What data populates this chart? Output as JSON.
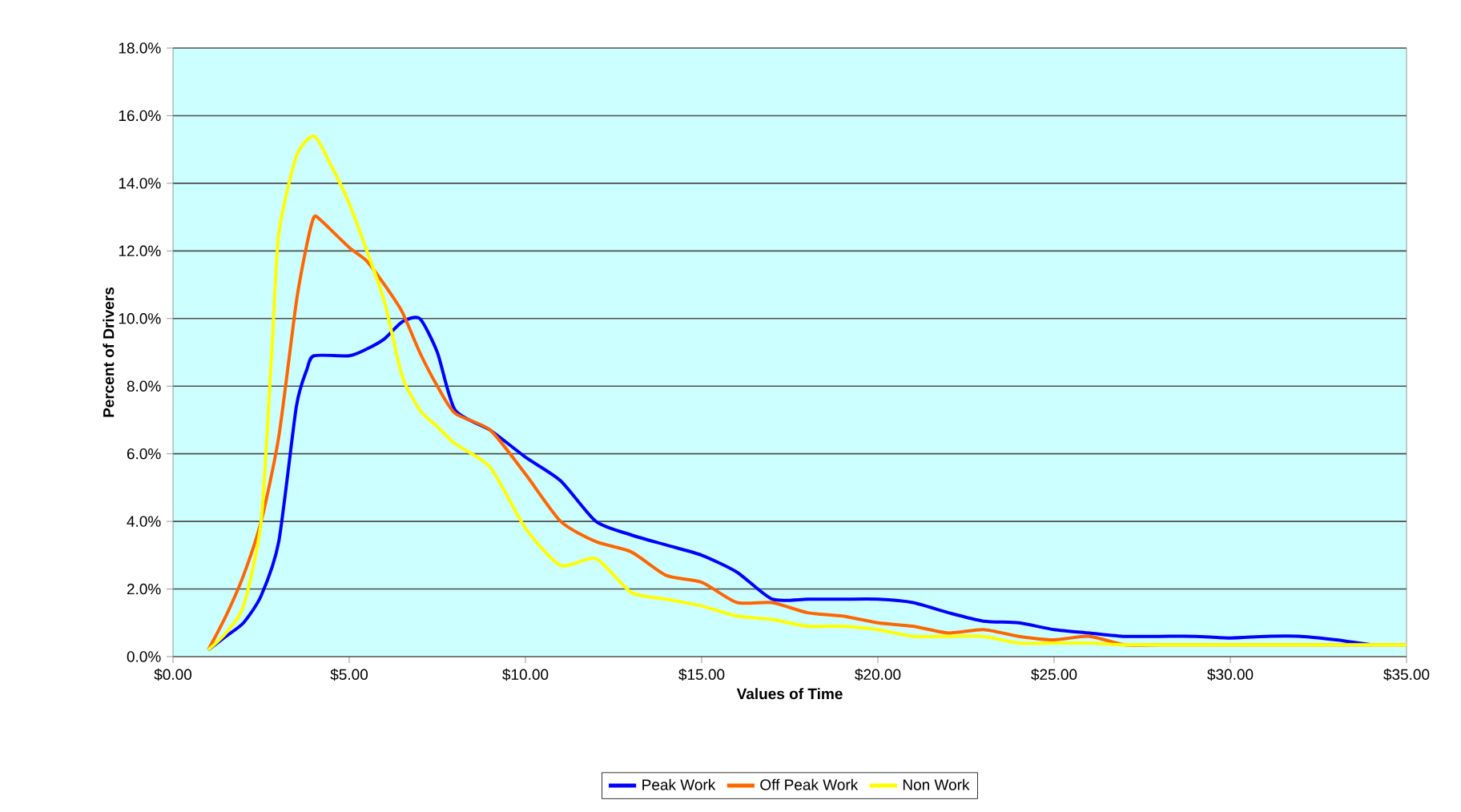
{
  "chart_data": {
    "type": "line",
    "xlabel": "Values of Time",
    "ylabel": "Percent of Drivers",
    "xlim": [
      0,
      35
    ],
    "ylim": [
      0,
      18
    ],
    "xticks": [
      {
        "value": 0,
        "label": "$0.00"
      },
      {
        "value": 5,
        "label": "$5.00"
      },
      {
        "value": 10,
        "label": "$10.00"
      },
      {
        "value": 15,
        "label": "$15.00"
      },
      {
        "value": 20,
        "label": "$20.00"
      },
      {
        "value": 25,
        "label": "$25.00"
      },
      {
        "value": 30,
        "label": "$30.00"
      },
      {
        "value": 35,
        "label": "$35.00"
      }
    ],
    "yticks": [
      {
        "value": 0,
        "label": "0.0%"
      },
      {
        "value": 2,
        "label": "2.0%"
      },
      {
        "value": 4,
        "label": "4.0%"
      },
      {
        "value": 6,
        "label": "6.0%"
      },
      {
        "value": 8,
        "label": "8.0%"
      },
      {
        "value": 10,
        "label": "10.0%"
      },
      {
        "value": 12,
        "label": "12.0%"
      },
      {
        "value": 14,
        "label": "14.0%"
      },
      {
        "value": 16,
        "label": "16.0%"
      },
      {
        "value": 18,
        "label": "18.0%"
      }
    ],
    "grid": "y",
    "legend": "bottom",
    "marker": "none",
    "line_style": "solid",
    "series": [
      {
        "name": "Peak Work",
        "color": "#0000ff",
        "x": [
          1,
          1.5,
          2,
          2.5,
          3,
          3.5,
          3.8,
          4,
          5,
          5.5,
          6,
          6.5,
          7,
          7.5,
          8,
          9,
          10,
          11,
          12,
          13,
          14,
          15,
          16,
          17,
          18,
          19,
          20,
          21,
          22,
          23,
          24,
          25,
          26,
          27,
          28,
          29,
          30,
          31,
          32,
          33,
          34
        ],
        "values": [
          0.2,
          0.6,
          1.0,
          1.8,
          3.4,
          7.4,
          8.5,
          8.9,
          8.9,
          9.1,
          9.4,
          9.9,
          10.0,
          9.0,
          7.3,
          6.7,
          5.9,
          5.2,
          4.0,
          3.6,
          3.3,
          3.0,
          2.5,
          1.7,
          1.7,
          1.7,
          1.7,
          1.6,
          1.3,
          1.05,
          1.0,
          0.8,
          0.7,
          0.6,
          0.6,
          0.6,
          0.55,
          0.6,
          0.6,
          0.5,
          0.35
        ]
      },
      {
        "name": "Off Peak Work",
        "color": "#ff6600",
        "x": [
          1,
          1.5,
          2,
          2.5,
          3,
          3.5,
          3.8,
          4,
          4.2,
          5,
          5.5,
          6,
          6.5,
          7,
          7.5,
          8,
          9,
          10,
          11,
          12,
          13,
          14,
          15,
          16,
          17,
          18,
          19,
          20,
          21,
          22,
          23,
          24,
          25,
          26,
          27,
          28,
          29,
          30,
          31,
          32,
          33,
          34,
          35
        ],
        "values": [
          0.2,
          1.2,
          2.4,
          4.0,
          6.5,
          10.5,
          12.2,
          13.0,
          12.9,
          12.1,
          11.7,
          11.0,
          10.2,
          9.0,
          8.0,
          7.2,
          6.7,
          5.4,
          4.0,
          3.4,
          3.1,
          2.4,
          2.2,
          1.6,
          1.6,
          1.3,
          1.2,
          1.0,
          0.9,
          0.7,
          0.8,
          0.6,
          0.5,
          0.6,
          0.35,
          0.35,
          0.35,
          0.35,
          0.35,
          0.35,
          0.35,
          0.35,
          0.35
        ]
      },
      {
        "name": "Non Work",
        "color": "#ffff00",
        "x": [
          1,
          1.5,
          2,
          2.5,
          2.8,
          3,
          3.5,
          4,
          4.5,
          5,
          5.5,
          6,
          6.5,
          7,
          7.5,
          8,
          9,
          10,
          11,
          12,
          13,
          14,
          15,
          16,
          17,
          18,
          19,
          20,
          21,
          22,
          23,
          24,
          25,
          26,
          27,
          28,
          29,
          30,
          31,
          32,
          33,
          34,
          35
        ],
        "values": [
          0.2,
          0.7,
          1.5,
          4.0,
          9.0,
          12.5,
          14.8,
          15.4,
          14.5,
          13.4,
          12.0,
          10.5,
          8.3,
          7.3,
          6.8,
          6.3,
          5.6,
          3.8,
          2.7,
          2.9,
          1.9,
          1.7,
          1.5,
          1.2,
          1.1,
          0.9,
          0.9,
          0.8,
          0.6,
          0.6,
          0.6,
          0.4,
          0.4,
          0.4,
          0.35,
          0.35,
          0.35,
          0.35,
          0.35,
          0.35,
          0.35,
          0.35,
          0.35
        ]
      }
    ]
  }
}
